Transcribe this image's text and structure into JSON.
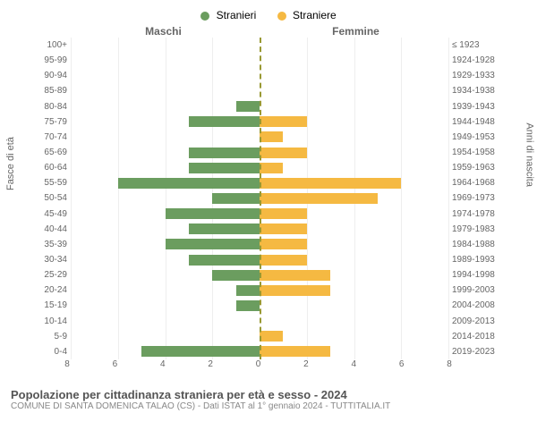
{
  "chart": {
    "type": "population-pyramid",
    "legend": {
      "male": "Stranieri",
      "female": "Straniere"
    },
    "column_headers": {
      "left": "Maschi",
      "right": "Femmine"
    },
    "axis_labels": {
      "left": "Fasce di età",
      "right": "Anni di nascita"
    },
    "age_groups": [
      "100+",
      "95-99",
      "90-94",
      "85-89",
      "80-84",
      "75-79",
      "70-74",
      "65-69",
      "60-64",
      "55-59",
      "50-54",
      "45-49",
      "40-44",
      "35-39",
      "30-34",
      "25-29",
      "20-24",
      "15-19",
      "10-14",
      "5-9",
      "0-4"
    ],
    "birth_years": [
      "≤ 1923",
      "1924-1928",
      "1929-1933",
      "1934-1938",
      "1939-1943",
      "1944-1948",
      "1949-1953",
      "1954-1958",
      "1959-1963",
      "1964-1968",
      "1969-1973",
      "1974-1978",
      "1979-1983",
      "1984-1988",
      "1989-1993",
      "1994-1998",
      "1999-2003",
      "2004-2008",
      "2009-2013",
      "2014-2018",
      "2019-2023"
    ],
    "male_values": [
      0,
      0,
      0,
      0,
      1,
      3,
      0,
      3,
      3,
      6,
      2,
      4,
      3,
      4,
      3,
      2,
      1,
      1,
      0,
      0,
      5
    ],
    "female_values": [
      0,
      0,
      0,
      0,
      0,
      2,
      1,
      2,
      1,
      6,
      5,
      2,
      2,
      2,
      2,
      3,
      3,
      0,
      0,
      1,
      3
    ],
    "colors": {
      "male": "#6b9d5f",
      "female": "#f5b942",
      "center_line": "#999933",
      "grid": "#eeeeee",
      "text": "#666666",
      "background": "#ffffff"
    },
    "x_max": 8,
    "x_ticks": [
      8,
      6,
      4,
      2,
      0,
      2,
      4,
      6,
      8
    ],
    "bar_height_ratio": 0.7,
    "fontsize": {
      "legend": 12,
      "labels": 10,
      "title": 13,
      "subtitle": 10
    },
    "title": "Popolazione per cittadinanza straniera per età e sesso - 2024",
    "subtitle": "COMUNE DI SANTA DOMENICA TALAO (CS) - Dati ISTAT al 1° gennaio 2024 - TUTTITALIA.IT"
  }
}
